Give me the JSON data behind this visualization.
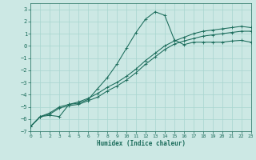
{
  "xlabel": "Humidex (Indice chaleur)",
  "xlim": [
    0,
    23
  ],
  "ylim": [
    -7,
    3.5
  ],
  "bg_color": "#cce8e4",
  "grid_color": "#a8d5cf",
  "line_color": "#1a6b5a",
  "x_ticks": [
    0,
    1,
    2,
    3,
    4,
    5,
    6,
    7,
    8,
    9,
    10,
    11,
    12,
    13,
    14,
    15,
    16,
    17,
    18,
    19,
    20,
    21,
    22,
    23
  ],
  "y_ticks": [
    -7,
    -6,
    -5,
    -4,
    -3,
    -2,
    -1,
    0,
    1,
    2,
    3
  ],
  "series1_x": [
    0,
    1,
    2,
    3,
    4,
    5,
    6,
    7,
    8,
    9,
    10,
    11,
    12,
    13,
    14,
    15,
    16,
    17,
    18,
    19,
    20,
    21,
    22,
    23
  ],
  "series1_y": [
    -6.6,
    -5.8,
    -5.7,
    -5.8,
    -4.8,
    -4.7,
    -4.4,
    -3.5,
    -2.6,
    -1.5,
    -0.2,
    1.1,
    2.2,
    2.8,
    2.5,
    0.5,
    0.1,
    0.3,
    0.3,
    0.3,
    0.3,
    0.4,
    0.45,
    0.3
  ],
  "series2_x": [
    0,
    1,
    2,
    3,
    4,
    5,
    6,
    7,
    8,
    9,
    10,
    11,
    12,
    13,
    14,
    15,
    16,
    17,
    18,
    19,
    20,
    21,
    22,
    23
  ],
  "series2_y": [
    -6.6,
    -5.8,
    -5.6,
    -5.1,
    -4.9,
    -4.8,
    -4.5,
    -4.2,
    -3.7,
    -3.3,
    -2.8,
    -2.2,
    -1.5,
    -0.9,
    -0.3,
    0.15,
    0.4,
    0.6,
    0.8,
    0.9,
    1.0,
    1.1,
    1.2,
    1.2
  ],
  "series3_x": [
    0,
    1,
    2,
    3,
    4,
    5,
    6,
    7,
    8,
    9,
    10,
    11,
    12,
    13,
    14,
    15,
    16,
    17,
    18,
    19,
    20,
    21,
    22,
    23
  ],
  "series3_y": [
    -6.6,
    -5.8,
    -5.5,
    -5.0,
    -4.8,
    -4.6,
    -4.3,
    -3.9,
    -3.4,
    -3.0,
    -2.5,
    -1.9,
    -1.2,
    -0.6,
    0.0,
    0.4,
    0.7,
    1.0,
    1.2,
    1.3,
    1.4,
    1.5,
    1.6,
    1.5
  ]
}
